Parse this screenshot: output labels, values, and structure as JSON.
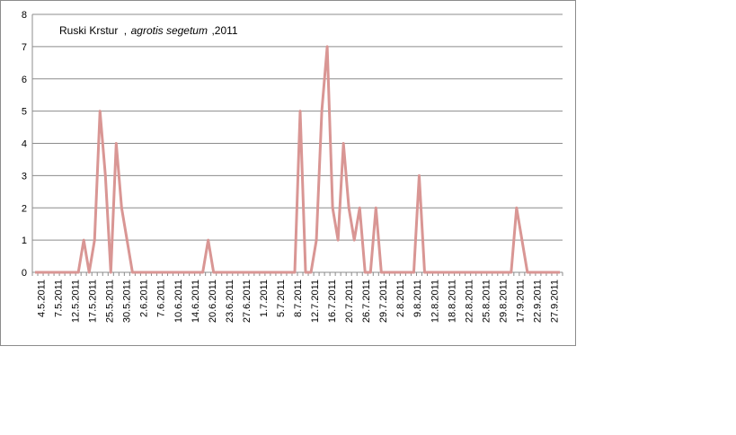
{
  "chart_data": {
    "type": "line",
    "title_parts": [
      "Ruski Krstur",
      ",",
      "agrotis segetum",
      ",2011"
    ],
    "xlabel": "",
    "ylabel": "",
    "ylim": [
      0,
      8
    ],
    "yticks": [
      0,
      1,
      2,
      3,
      4,
      5,
      6,
      7,
      8
    ],
    "grid": true,
    "legend": "none",
    "line_color": "#d99694",
    "x_tick_labels": [
      "4.5.2011",
      "7.5.2011",
      "12.5.2011",
      "17.5.2011",
      "25.5.2011",
      "30.5.2011",
      "2.6.2011",
      "7.6.2011",
      "10.6.2011",
      "14.6.2011",
      "20.6.2011",
      "23.6.2011",
      "27.6.2011",
      "1.7.2011",
      "5.7.2011",
      "8.7.2011",
      "12.7.2011",
      "16.7.2011",
      "20.7.2011",
      "26.7.2011",
      "29.7.2011",
      "2.8.2011",
      "9.8.2011",
      "12.8.2011",
      "18.8.2011",
      "22.8.2011",
      "25.8.2011",
      "29.8.2011",
      "17.9.2011",
      "22.9.2011",
      "27.9.2011"
    ],
    "values": [
      0,
      0,
      0,
      0,
      0,
      0,
      0,
      0,
      0,
      1,
      0,
      1,
      5,
      3,
      0,
      4,
      2,
      1,
      0,
      0,
      0,
      0,
      0,
      0,
      0,
      0,
      0,
      0,
      0,
      0,
      0,
      0,
      1,
      0,
      0,
      0,
      0,
      0,
      0,
      0,
      0,
      0,
      0,
      0,
      0,
      0,
      0,
      0,
      0,
      5,
      0,
      0,
      1,
      5,
      7,
      2,
      1,
      4,
      2,
      1,
      2,
      0,
      0,
      2,
      0,
      0,
      0,
      0,
      0,
      0,
      0,
      3,
      0,
      0,
      0,
      0,
      0,
      0,
      0,
      0,
      0,
      0,
      0,
      0,
      0,
      0,
      0,
      0,
      0,
      2,
      1,
      0,
      0,
      0,
      0,
      0,
      0,
      0
    ]
  }
}
